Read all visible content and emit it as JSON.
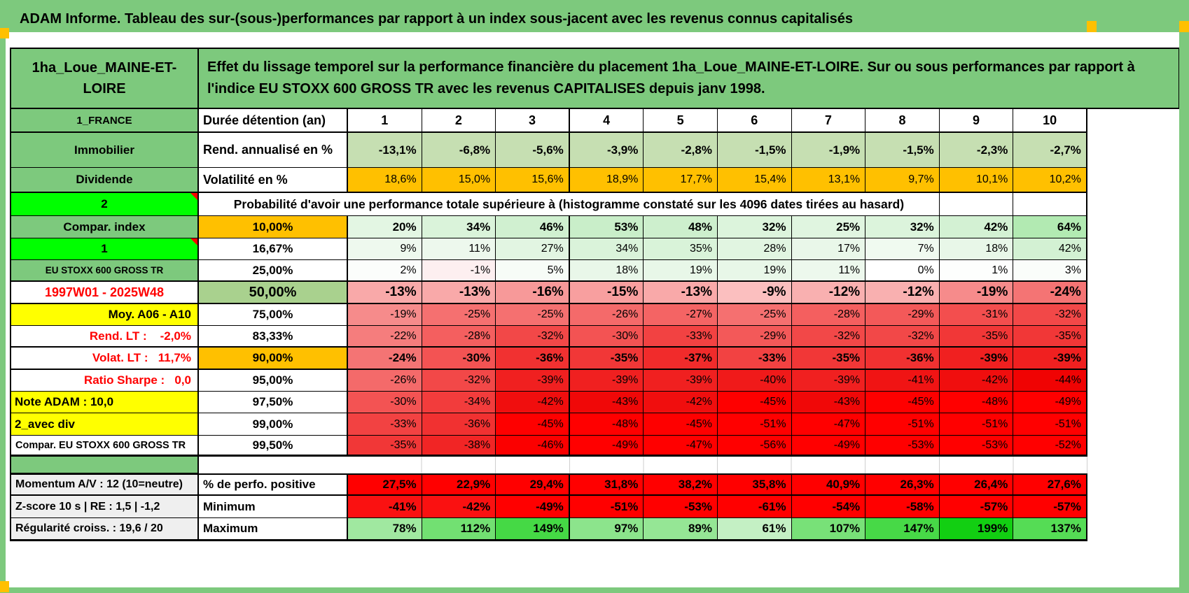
{
  "title": "ADAM Informe. Tableau des sur-(sous-)performances par rapport à un index sous-jacent avec les revenus connus capitalisés",
  "header": {
    "asset_name": "1ha_Loue_MAINE-ET-LOIRE",
    "description": "Effet du lissage temporel sur la performance financière du placement 1ha_Loue_MAINE-ET-LOIRE. Sur ou sous performances par rapport à l'indice EU STOXX 600 GROSS TR avec les revenus CAPITALISES depuis janv 1998."
  },
  "colors": {
    "band_green": "#7dc97d",
    "bright_green": "#00ff00",
    "orange": "#ffc000",
    "yellow": "#ffff00",
    "sage": "#c6dfb2",
    "olive": "#a9d18e",
    "gray": "#efefef",
    "red": "#ff0000",
    "red_text": "#ff0000"
  },
  "grid": {
    "main_rows": [
      {
        "key": "duree",
        "a": "1_FRANCE",
        "b": "Durée détention (an)",
        "values": [
          "1",
          "2",
          "3",
          "4",
          "5",
          "6",
          "7",
          "8",
          "9",
          "10"
        ]
      },
      {
        "key": "rend",
        "a": "Immobilier",
        "b": "Rend. annualisé en %",
        "values": [
          "-13,1%",
          "-6,8%",
          "-5,6%",
          "-3,9%",
          "-2,8%",
          "-1,5%",
          "-1,9%",
          "-1,5%",
          "-2,3%",
          "-2,7%"
        ],
        "bg": "#c6dfb2"
      },
      {
        "key": "volat",
        "a": "Dividende",
        "b": "Volatilité en %",
        "values": [
          "18,6%",
          "15,0%",
          "15,6%",
          "18,9%",
          "17,7%",
          "15,4%",
          "13,1%",
          "9,7%",
          "10,1%",
          "10,2%"
        ],
        "bg": "#ffc000"
      },
      {
        "key": "proba",
        "a": "2",
        "note": true,
        "bSpan": true,
        "b": "Probabilité d'avoir une performance totale supérieure à (histogramme constaté sur les 4096 dates tirées au hasard)",
        "values": [
          "",
          ""
        ]
      },
      {
        "key": "p10",
        "a": "Compar. index",
        "b": "10,00%",
        "values": [
          "20%",
          "34%",
          "46%",
          "53%",
          "48%",
          "32%",
          "25%",
          "32%",
          "42%",
          "64%"
        ],
        "bg": [
          "#e3f6e3",
          "#daf3da",
          "#d0f0d0",
          "#c9eec9",
          "#cdefcd",
          "#dcf4dc",
          "#e0f5e0",
          "#dcf4dc",
          "#d3f1d3",
          "#b2eab2"
        ]
      },
      {
        "key": "p1667",
        "a": "1",
        "note": true,
        "b": "16,67%",
        "values": [
          "9%",
          "11%",
          "27%",
          "34%",
          "35%",
          "28%",
          "17%",
          "7%",
          "18%",
          "42%"
        ],
        "bg": [
          "#eef9ee",
          "#edf8ed",
          "#e2f5e2",
          "#daf3da",
          "#d9f3d9",
          "#e1f5e1",
          "#e9f7e9",
          "#f0faf0",
          "#e8f7e8",
          "#d3f1d3"
        ]
      },
      {
        "key": "p25",
        "a": "EU STOXX 600 GROSS TR",
        "b": "25,00%",
        "values": [
          "2%",
          "-1%",
          "5%",
          "18%",
          "19%",
          "19%",
          "11%",
          "0%",
          "1%",
          "3%"
        ],
        "bg": [
          "#fbfdfb",
          "#fdeff0",
          "#f7fcf7",
          "#e9f7e9",
          "#e8f7e8",
          "#e8f7e8",
          "#edf8ed",
          "#ffffff",
          "#fdfefd",
          "#fafdfa"
        ]
      },
      {
        "key": "p50",
        "a": "1997W01 - 2025W48",
        "b": "50,00%",
        "values": [
          "-13%",
          "-13%",
          "-16%",
          "-15%",
          "-13%",
          "-9%",
          "-12%",
          "-12%",
          "-19%",
          "-24%"
        ],
        "bg": [
          "#f9a9a9",
          "#f9a9a9",
          "#f79999",
          "#f89f9f",
          "#f9a9a9",
          "#fbbfbf",
          "#f9b0b0",
          "#f9b0b0",
          "#f68b8b",
          "#f47474"
        ]
      },
      {
        "key": "p75",
        "a": "Moy. A06 - A10",
        "b": "75,00%",
        "values": [
          "-19%",
          "-25%",
          "-25%",
          "-26%",
          "-27%",
          "-25%",
          "-28%",
          "-29%",
          "-31%",
          "-32%"
        ],
        "bg": [
          "#f68b8b",
          "#f57070",
          "#f57070",
          "#f46a6a",
          "#f46464",
          "#f57070",
          "#f45f5f",
          "#f35959",
          "#f34e4e",
          "#f24848"
        ]
      },
      {
        "key": "p8333",
        "a": "Rend. LT :    -2,0%",
        "b": "83,33%",
        "values": [
          "-22%",
          "-28%",
          "-32%",
          "-30%",
          "-33%",
          "-29%",
          "-32%",
          "-32%",
          "-35%",
          "-35%"
        ],
        "bg": [
          "#f57d7d",
          "#f45f5f",
          "#f24848",
          "#f35353",
          "#f24242",
          "#f35959",
          "#f24848",
          "#f24848",
          "#f13737",
          "#f13737"
        ]
      },
      {
        "key": "p90",
        "a": "Volat. LT :   11,7%",
        "b": "90,00%",
        "values": [
          "-24%",
          "-30%",
          "-36%",
          "-35%",
          "-37%",
          "-33%",
          "-35%",
          "-36%",
          "-39%",
          "-39%"
        ],
        "bg": [
          "#f47474",
          "#f35353",
          "#f13131",
          "#f13737",
          "#f12b2b",
          "#f24242",
          "#f13737",
          "#f13131",
          "#f02020",
          "#f02020"
        ]
      },
      {
        "key": "p95",
        "a": "Ratio Sharpe :   0,0",
        "b": "95,00%",
        "values": [
          "-26%",
          "-32%",
          "-39%",
          "-39%",
          "-39%",
          "-40%",
          "-39%",
          "-41%",
          "-42%",
          "-44%"
        ],
        "bg": [
          "#f46a6a",
          "#f24848",
          "#f02020",
          "#f02020",
          "#f02020",
          "#f01a1a",
          "#f02020",
          "#f01414",
          "#f00e0e",
          "#f00303"
        ]
      },
      {
        "key": "p975",
        "a": "Note ADAM : 10,0",
        "b": "97,50%",
        "values": [
          "-30%",
          "-34%",
          "-42%",
          "-43%",
          "-42%",
          "-45%",
          "-43%",
          "-45%",
          "-48%",
          "-49%"
        ],
        "bg": [
          "#f35353",
          "#f23c3c",
          "#f00e0e",
          "#f00808",
          "#f00e0e",
          "#fe0000",
          "#f00808",
          "#fe0000",
          "#ff0000",
          "#ff0000"
        ]
      },
      {
        "key": "p99",
        "a": "2_avec div",
        "b": "99,00%",
        "values": [
          "-33%",
          "-36%",
          "-45%",
          "-48%",
          "-45%",
          "-51%",
          "-47%",
          "-51%",
          "-51%",
          "-51%"
        ],
        "bg": [
          "#f24242",
          "#f13131",
          "#fe0000",
          "#ff0000",
          "#fe0000",
          "#ff0000",
          "#ff0000",
          "#ff0000",
          "#ff0000",
          "#ff0000"
        ]
      },
      {
        "key": "p995",
        "a": "Compar. EU STOXX 600 GROSS TR",
        "b": "99,50%",
        "values": [
          "-35%",
          "-38%",
          "-46%",
          "-49%",
          "-47%",
          "-56%",
          "-49%",
          "-53%",
          "-53%",
          "-52%"
        ],
        "bg": [
          "#f13737",
          "#f12525",
          "#fb0000",
          "#ff0000",
          "#ff0000",
          "#ff0000",
          "#ff0000",
          "#ff0000",
          "#ff0000",
          "#ff0000"
        ]
      }
    ],
    "bottom_rows": [
      {
        "key": "pos",
        "a": "Momentum A/V : 12 (10=neutre)",
        "b": "% de perfo. positive",
        "values": [
          "27,5%",
          "22,9%",
          "29,4%",
          "31,8%",
          "38,2%",
          "35,8%",
          "40,9%",
          "26,3%",
          "26,4%",
          "27,6%"
        ],
        "bg": "#ff0000"
      },
      {
        "key": "min",
        "a": "Z-score 10 s | RE : 1,5 | -1,2",
        "b": "Minimum",
        "values": [
          "-41%",
          "-42%",
          "-49%",
          "-51%",
          "-53%",
          "-61%",
          "-54%",
          "-58%",
          "-57%",
          "-57%"
        ],
        "bg": [
          "#fa1111",
          "#fa1111",
          "#ff0000",
          "#ff0000",
          "#ff0000",
          "#ff0000",
          "#ff0000",
          "#ff0000",
          "#ff0000",
          "#ff0000"
        ]
      },
      {
        "key": "max",
        "a": "Régularité croiss. : 19,6 / 20",
        "b": "Maximum",
        "values": [
          "78%",
          "112%",
          "149%",
          "97%",
          "89%",
          "61%",
          "107%",
          "147%",
          "199%",
          "137%"
        ],
        "bg": [
          "#a0e8a0",
          "#72e072",
          "#45d945",
          "#8ce48c",
          "#95e695",
          "#c4f0c4",
          "#78e178",
          "#47d947",
          "#12cf12",
          "#55dc55"
        ]
      }
    ]
  }
}
